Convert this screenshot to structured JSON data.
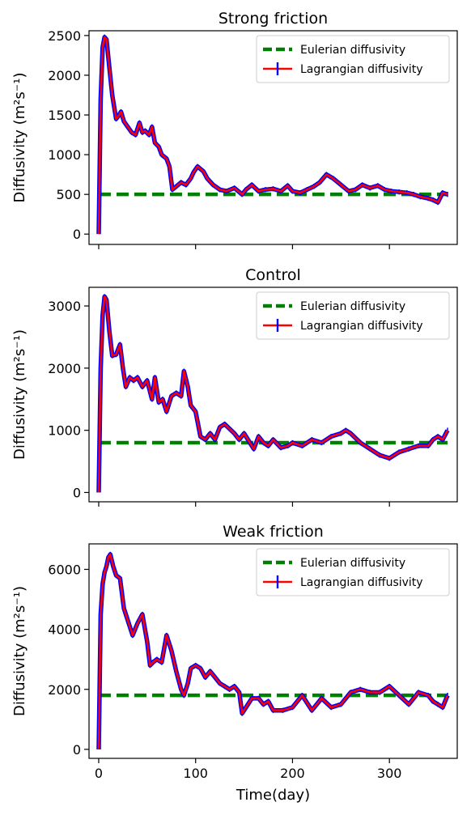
{
  "figure": {
    "xlabel": "Time(day)",
    "xticks": [
      0,
      100,
      200,
      300
    ],
    "colors": {
      "eulerian": "#008000",
      "lagrangian": "#ff0000",
      "errorbar": "#0000ff"
    }
  },
  "chart_data": [
    {
      "type": "line",
      "title": "Strong friction",
      "xlabel": "",
      "ylabel": "Diffusivity (m²s⁻¹)",
      "xlim": [
        -10,
        370
      ],
      "ylim": [
        -130,
        2560
      ],
      "yticks": [
        0,
        500,
        1000,
        1500,
        2000,
        2500
      ],
      "legend": {
        "placement": "top-right",
        "entries": [
          "Eulerian diffusivity",
          "Lagrangian diffusivity"
        ]
      },
      "series": [
        {
          "name": "Eulerian diffusivity",
          "style": "dashed",
          "x": [
            0,
            360
          ],
          "y": [
            500,
            500
          ]
        },
        {
          "name": "Lagrangian diffusivity",
          "style": "solid-with-errorbars",
          "x": [
            0,
            2,
            4,
            6,
            8,
            11,
            14,
            18,
            20,
            23,
            26,
            30,
            34,
            38,
            42,
            45,
            48,
            52,
            55,
            58,
            62,
            65,
            70,
            73,
            76,
            80,
            85,
            90,
            95,
            98,
            102,
            108,
            112,
            118,
            125,
            132,
            140,
            148,
            152,
            158,
            165,
            172,
            180,
            188,
            195,
            200,
            208,
            215,
            222,
            228,
            235,
            242,
            250,
            258,
            265,
            272,
            280,
            288,
            295,
            302,
            310,
            318,
            325,
            332,
            340,
            345,
            350,
            355,
            360
          ],
          "y": [
            0,
            1700,
            2350,
            2480,
            2450,
            2100,
            1750,
            1450,
            1480,
            1540,
            1420,
            1350,
            1280,
            1250,
            1400,
            1280,
            1300,
            1250,
            1350,
            1150,
            1100,
            1000,
            950,
            850,
            560,
            600,
            650,
            620,
            700,
            780,
            850,
            790,
            700,
            620,
            560,
            540,
            580,
            500,
            560,
            620,
            540,
            560,
            570,
            540,
            610,
            540,
            520,
            560,
            600,
            650,
            750,
            700,
            620,
            540,
            560,
            620,
            580,
            610,
            560,
            540,
            530,
            520,
            500,
            470,
            450,
            430,
            400,
            520,
            500
          ]
        }
      ]
    },
    {
      "type": "line",
      "title": "Control",
      "xlabel": "",
      "ylabel": "Diffusivity (m²s⁻¹)",
      "xlim": [
        -10,
        370
      ],
      "ylim": [
        -150,
        3300
      ],
      "yticks": [
        0,
        1000,
        2000,
        3000
      ],
      "legend": {
        "placement": "top-right",
        "entries": [
          "Eulerian diffusivity",
          "Lagrangian diffusivity"
        ]
      },
      "series": [
        {
          "name": "Eulerian diffusivity",
          "style": "dashed",
          "x": [
            0,
            360
          ],
          "y": [
            800,
            800
          ]
        },
        {
          "name": "Lagrangian diffusivity",
          "style": "solid-with-errorbars",
          "x": [
            0,
            2,
            4,
            6,
            8,
            11,
            14,
            18,
            22,
            25,
            28,
            32,
            36,
            40,
            45,
            50,
            55,
            58,
            62,
            66,
            70,
            75,
            80,
            85,
            88,
            92,
            95,
            100,
            105,
            110,
            115,
            120,
            125,
            130,
            140,
            145,
            150,
            160,
            165,
            170,
            175,
            180,
            188,
            195,
            200,
            210,
            220,
            230,
            240,
            250,
            255,
            260,
            270,
            280,
            290,
            300,
            310,
            320,
            330,
            340,
            345,
            350,
            355,
            360
          ],
          "y": [
            0,
            2000,
            2850,
            3150,
            3100,
            2600,
            2200,
            2220,
            2380,
            2000,
            1700,
            1850,
            1800,
            1850,
            1700,
            1800,
            1500,
            1850,
            1450,
            1500,
            1300,
            1550,
            1600,
            1550,
            1950,
            1700,
            1400,
            1300,
            900,
            850,
            950,
            850,
            1050,
            1100,
            950,
            850,
            950,
            700,
            900,
            800,
            750,
            850,
            720,
            750,
            800,
            750,
            850,
            800,
            900,
            950,
            1000,
            950,
            800,
            700,
            600,
            550,
            650,
            700,
            750,
            750,
            850,
            900,
            850,
            1000
          ]
        }
      ]
    },
    {
      "type": "line",
      "title": "Weak friction",
      "xlabel": "Time(day)",
      "ylabel": "Diffusivity (m²s⁻¹)",
      "xlim": [
        -10,
        370
      ],
      "ylim": [
        -300,
        6850
      ],
      "yticks": [
        0,
        2000,
        4000,
        6000
      ],
      "legend": {
        "placement": "top-right",
        "entries": [
          "Eulerian diffusivity",
          "Lagrangian diffusivity"
        ]
      },
      "series": [
        {
          "name": "Eulerian diffusivity",
          "style": "dashed",
          "x": [
            0,
            360
          ],
          "y": [
            1800,
            1800
          ]
        },
        {
          "name": "Lagrangian diffusivity",
          "style": "solid-with-errorbars",
          "x": [
            0,
            2,
            4,
            6,
            8,
            10,
            12,
            15,
            18,
            22,
            26,
            30,
            35,
            40,
            45,
            50,
            53,
            56,
            60,
            65,
            70,
            75,
            80,
            85,
            88,
            92,
            95,
            100,
            105,
            110,
            115,
            120,
            125,
            130,
            135,
            140,
            145,
            148,
            152,
            158,
            165,
            170,
            175,
            180,
            190,
            200,
            210,
            220,
            230,
            240,
            250,
            260,
            270,
            280,
            290,
            300,
            310,
            320,
            330,
            340,
            345,
            350,
            355,
            360
          ],
          "y": [
            0,
            4500,
            5500,
            5900,
            6100,
            6400,
            6500,
            6100,
            5800,
            5700,
            4700,
            4300,
            3800,
            4200,
            4500,
            3600,
            2800,
            2900,
            3000,
            2900,
            3800,
            3300,
            2600,
            2000,
            1800,
            2200,
            2700,
            2800,
            2700,
            2400,
            2600,
            2400,
            2200,
            2100,
            2000,
            2100,
            1900,
            1200,
            1400,
            1700,
            1700,
            1500,
            1600,
            1300,
            1300,
            1400,
            1800,
            1300,
            1700,
            1400,
            1500,
            1900,
            2000,
            1900,
            1900,
            2100,
            1800,
            1500,
            1900,
            1800,
            1600,
            1500,
            1400,
            1800
          ]
        }
      ]
    }
  ]
}
